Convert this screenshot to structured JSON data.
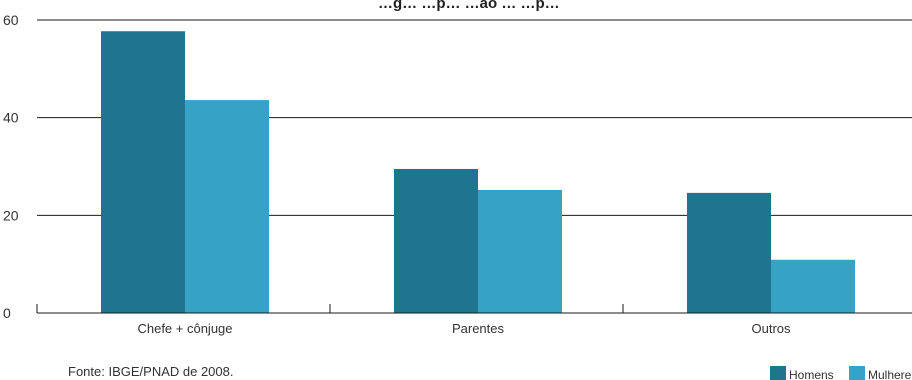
{
  "chart_data": {
    "type": "bar",
    "title": "…g… …p… …ão … …p…",
    "xlabel": "",
    "ylabel": "",
    "categories": [
      "Chefe + cônjuge",
      "Parentes",
      "Outros"
    ],
    "series": [
      {
        "name": "Homens",
        "values": [
          57.7,
          29.5,
          24.6
        ],
        "color": "#1f7590"
      },
      {
        "name": "Mulhere",
        "values": [
          43.6,
          25.2,
          10.9
        ],
        "color": "#36a2c6"
      }
    ],
    "ylim": [
      0,
      60
    ],
    "yticks": [
      "0",
      "20",
      "40",
      "60"
    ],
    "grid": true,
    "legend_position": "bottom-right",
    "source": "Fonte: IBGE/PNAD de 2008."
  }
}
